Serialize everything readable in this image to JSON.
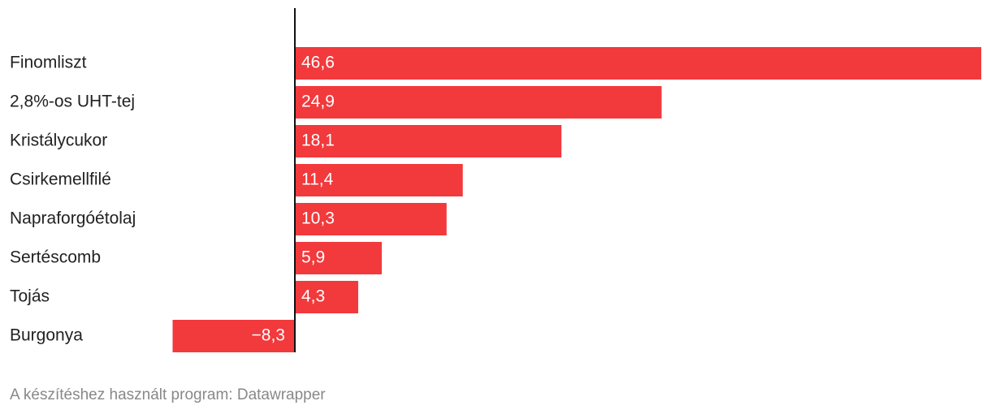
{
  "chart_data": {
    "type": "bar",
    "orientation": "horizontal",
    "categories": [
      "Finomliszt",
      "2,8%-os UHT-tej",
      "Kristálycukor",
      "Csirkemellfilé",
      "Napraforgóétolaj",
      "Sertéscomb",
      "Tojás",
      "Burgonya"
    ],
    "values": [
      46.6,
      24.9,
      18.1,
      11.4,
      10.3,
      5.9,
      4.3,
      -8.3
    ],
    "value_labels": [
      "46,6",
      "24,9",
      "18,1",
      "11,4",
      "10,3",
      "5,9",
      "4,3",
      "−8,3"
    ],
    "color": "#f2393c",
    "source": "A készítéshez használt program: Datawrapper"
  }
}
